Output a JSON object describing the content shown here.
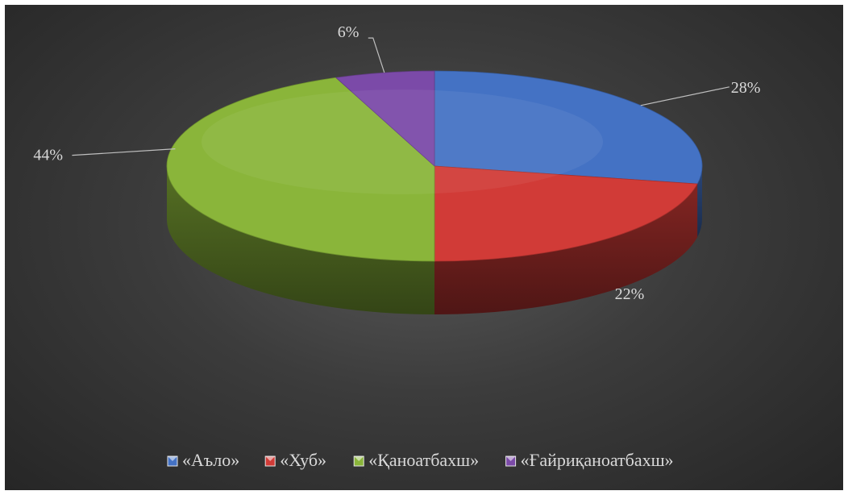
{
  "chart_data": {
    "type": "pie",
    "style": "3d",
    "series": [
      {
        "name": "",
        "categories": [
          "«Аъло»",
          "«Хуб»",
          "«Қаноатбахш»",
          "«Ғайриқаноатбахш»"
        ],
        "values": [
          28,
          22,
          44,
          6
        ],
        "labels": [
          "28%",
          "22%",
          "44%",
          "6%"
        ],
        "colors": [
          "#4472c4",
          "#d13b37",
          "#8ab53a",
          "#7b4aa8"
        ]
      }
    ],
    "legend": "bottom",
    "background": "#3c3c3c"
  }
}
